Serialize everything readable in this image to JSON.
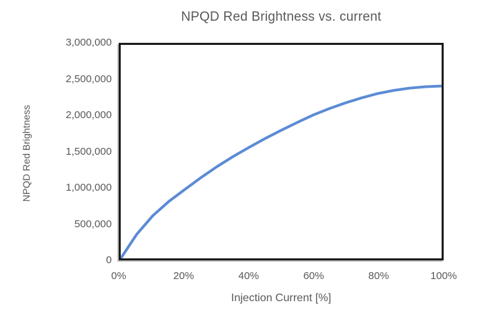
{
  "chart": {
    "title": "NPQD Red Brightness vs. current",
    "x_axis_label": "Injection Current [%]",
    "y_axis_label": "NPQD Red Brightness"
  },
  "chart_data": {
    "type": "line",
    "title": "NPQD Red Brightness vs. current",
    "xlabel": "Injection Current [%]",
    "ylabel": "NPQD Red Brightness",
    "xlim": [
      0,
      100
    ],
    "ylim": [
      0,
      3000000
    ],
    "grid": false,
    "legend": false,
    "line_color": "#5B8BD5",
    "x_percent": [
      0,
      5,
      10,
      15,
      20,
      25,
      30,
      35,
      40,
      45,
      50,
      55,
      60,
      65,
      70,
      75,
      80,
      85,
      90,
      95,
      100
    ],
    "values": [
      0,
      340000,
      600000,
      800000,
      970000,
      1135000,
      1290000,
      1430000,
      1560000,
      1685000,
      1800000,
      1910000,
      2015000,
      2105000,
      2185000,
      2255000,
      2315000,
      2360000,
      2392000,
      2412000,
      2422000
    ],
    "x_ticks": [
      {
        "value": 0,
        "label": "0%"
      },
      {
        "value": 20,
        "label": "20%"
      },
      {
        "value": 40,
        "label": "40%"
      },
      {
        "value": 60,
        "label": "60%"
      },
      {
        "value": 80,
        "label": "80%"
      },
      {
        "value": 100,
        "label": "100%"
      }
    ],
    "y_ticks": [
      {
        "value": 0,
        "label": "0"
      },
      {
        "value": 500000,
        "label": "500,000"
      },
      {
        "value": 1000000,
        "label": "1,000,000"
      },
      {
        "value": 1500000,
        "label": "1,500,000"
      },
      {
        "value": 2000000,
        "label": "2,000,000"
      },
      {
        "value": 2500000,
        "label": "2,500,000"
      },
      {
        "value": 3000000,
        "label": "3,000,000"
      }
    ]
  },
  "colors": {
    "line": "#5B8BD5",
    "text": "#595959",
    "axis_border": "#1c1c1c",
    "background": "#ffffff"
  }
}
